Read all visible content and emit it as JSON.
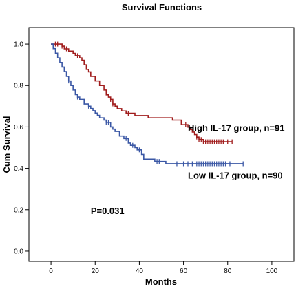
{
  "chart_data": {
    "type": "line",
    "title": "Survival Functions",
    "xlabel": "Months",
    "ylabel": "Cum Survival",
    "xlim": [
      -10,
      110
    ],
    "ylim": [
      -0.05,
      1.08
    ],
    "xticks": [
      0,
      20,
      40,
      60,
      80,
      100
    ],
    "yticks": [
      0.0,
      0.2,
      0.4,
      0.6,
      0.8,
      1.0
    ],
    "yticklabels": [
      "0.0",
      "0.2",
      "0.4",
      "0.6",
      "0.8",
      "1.0"
    ],
    "grid": false,
    "series": [
      {
        "name": "High IL-17 group, n=91",
        "color": "#a01c1c",
        "steps": [
          [
            0,
            1.0
          ],
          [
            5,
            0.99
          ],
          [
            6,
            0.977
          ],
          [
            8,
            0.966
          ],
          [
            10,
            0.955
          ],
          [
            11,
            0.944
          ],
          [
            13,
            0.933
          ],
          [
            14,
            0.922
          ],
          [
            15,
            0.9
          ],
          [
            16,
            0.878
          ],
          [
            17,
            0.866
          ],
          [
            18,
            0.844
          ],
          [
            20,
            0.822
          ],
          [
            22,
            0.8
          ],
          [
            24,
            0.778
          ],
          [
            25,
            0.755
          ],
          [
            26,
            0.744
          ],
          [
            27,
            0.733
          ],
          [
            28,
            0.711
          ],
          [
            29,
            0.7
          ],
          [
            30,
            0.688
          ],
          [
            32,
            0.677
          ],
          [
            34,
            0.666
          ],
          [
            38,
            0.655
          ],
          [
            44,
            0.644
          ],
          [
            55,
            0.633
          ],
          [
            59,
            0.611
          ],
          [
            62,
            0.599
          ],
          [
            63,
            0.587
          ],
          [
            64,
            0.575
          ],
          [
            65,
            0.563
          ],
          [
            66,
            0.551
          ],
          [
            67,
            0.539
          ],
          [
            69,
            0.528
          ],
          [
            82,
            0.528
          ]
        ],
        "censored": [
          [
            2,
            1.0
          ],
          [
            3,
            1.0
          ],
          [
            5,
            0.99
          ],
          [
            7,
            0.977
          ],
          [
            12,
            0.944
          ],
          [
            27,
            0.733
          ],
          [
            28,
            0.711
          ],
          [
            35,
            0.666
          ],
          [
            61,
            0.611
          ],
          [
            66,
            0.551
          ],
          [
            67,
            0.539
          ],
          [
            68,
            0.539
          ],
          [
            69,
            0.528
          ],
          [
            70,
            0.528
          ],
          [
            71,
            0.528
          ],
          [
            72,
            0.528
          ],
          [
            73,
            0.528
          ],
          [
            74,
            0.528
          ],
          [
            75,
            0.528
          ],
          [
            76,
            0.528
          ],
          [
            77,
            0.528
          ],
          [
            78,
            0.528
          ],
          [
            80,
            0.528
          ],
          [
            82,
            0.528
          ]
        ]
      },
      {
        "name": "Low IL-17 group, n=90",
        "color": "#3a57a5",
        "steps": [
          [
            0,
            1.0
          ],
          [
            1,
            0.978
          ],
          [
            2,
            0.956
          ],
          [
            3,
            0.933
          ],
          [
            4,
            0.911
          ],
          [
            5,
            0.889
          ],
          [
            6,
            0.867
          ],
          [
            7,
            0.844
          ],
          [
            8,
            0.822
          ],
          [
            9,
            0.8
          ],
          [
            10,
            0.778
          ],
          [
            11,
            0.756
          ],
          [
            12,
            0.744
          ],
          [
            13,
            0.733
          ],
          [
            15,
            0.711
          ],
          [
            17,
            0.7
          ],
          [
            18,
            0.689
          ],
          [
            19,
            0.678
          ],
          [
            20,
            0.667
          ],
          [
            21,
            0.656
          ],
          [
            22,
            0.644
          ],
          [
            24,
            0.633
          ],
          [
            25,
            0.622
          ],
          [
            27,
            0.6
          ],
          [
            28,
            0.589
          ],
          [
            29,
            0.578
          ],
          [
            31,
            0.556
          ],
          [
            33,
            0.544
          ],
          [
            35,
            0.522
          ],
          [
            36,
            0.511
          ],
          [
            38,
            0.5
          ],
          [
            39,
            0.489
          ],
          [
            41,
            0.467
          ],
          [
            42,
            0.444
          ],
          [
            47,
            0.433
          ],
          [
            52,
            0.422
          ],
          [
            87,
            0.422
          ]
        ],
        "censored": [
          [
            8,
            0.822
          ],
          [
            12,
            0.744
          ],
          [
            17,
            0.7
          ],
          [
            25,
            0.622
          ],
          [
            26,
            0.622
          ],
          [
            34,
            0.544
          ],
          [
            37,
            0.511
          ],
          [
            40,
            0.489
          ],
          [
            48,
            0.433
          ],
          [
            49,
            0.433
          ],
          [
            57,
            0.422
          ],
          [
            60,
            0.422
          ],
          [
            62,
            0.422
          ],
          [
            64,
            0.422
          ],
          [
            66,
            0.422
          ],
          [
            67,
            0.422
          ],
          [
            68,
            0.422
          ],
          [
            69,
            0.422
          ],
          [
            70,
            0.422
          ],
          [
            71,
            0.422
          ],
          [
            72,
            0.422
          ],
          [
            73,
            0.422
          ],
          [
            74,
            0.422
          ],
          [
            75,
            0.422
          ],
          [
            76,
            0.422
          ],
          [
            77,
            0.422
          ],
          [
            78,
            0.422
          ],
          [
            79,
            0.422
          ],
          [
            81,
            0.422
          ],
          [
            87,
            0.422
          ]
        ]
      }
    ],
    "annotations": [
      {
        "text": "High IL-17 group, n=91",
        "x": 62,
        "y": 0.58
      },
      {
        "text": "Low IL-17 group, n=90",
        "x": 62,
        "y": 0.35
      },
      {
        "text": "P=0.031",
        "x": 18,
        "y": 0.18
      }
    ]
  }
}
